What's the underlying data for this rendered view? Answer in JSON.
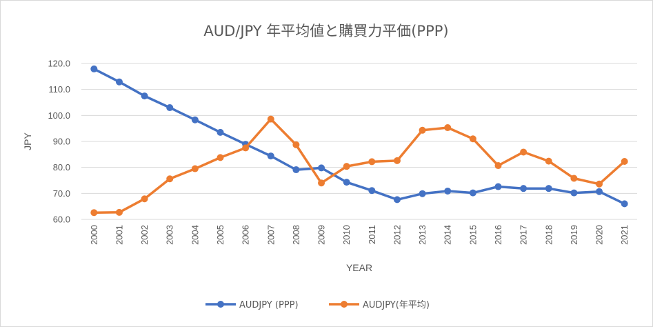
{
  "chart_data": {
    "type": "line",
    "title": "AUD/JPY 年平均値と購買力平価(PPP)",
    "xlabel": "YEAR",
    "ylabel": "JPY",
    "ylim": [
      60,
      120
    ],
    "yticks": [
      "60.0",
      "70.0",
      "80.0",
      "90.0",
      "100.0",
      "110.0",
      "120.0"
    ],
    "yticks_values": [
      60,
      70,
      80,
      90,
      100,
      110,
      120
    ],
    "grid": "horizontal",
    "legend": "bottom",
    "categories": [
      "2000",
      "2001",
      "2002",
      "2003",
      "2004",
      "2005",
      "2006",
      "2007",
      "2008",
      "2009",
      "2010",
      "2011",
      "2012",
      "2013",
      "2014",
      "2015",
      "2016",
      "2017",
      "2018",
      "2019",
      "2020",
      "2021"
    ],
    "series": [
      {
        "name": "AUDJPY (PPP)",
        "color": "#4472c4",
        "values": [
          117.9,
          112.9,
          107.5,
          103.0,
          98.3,
          93.5,
          88.9,
          84.4,
          79.1,
          79.8,
          74.3,
          71.1,
          67.6,
          69.9,
          70.9,
          70.2,
          72.6,
          71.9,
          71.9,
          70.2,
          70.7,
          66.0
        ]
      },
      {
        "name": "AUDJPY(年平均)",
        "color": "#ed7d31",
        "values": [
          62.6,
          62.7,
          67.9,
          75.6,
          79.5,
          83.8,
          87.5,
          98.6,
          88.7,
          74.0,
          80.4,
          82.2,
          82.6,
          94.3,
          95.3,
          91.0,
          80.7,
          85.9,
          82.4,
          75.8,
          73.6,
          82.3
        ]
      }
    ]
  }
}
